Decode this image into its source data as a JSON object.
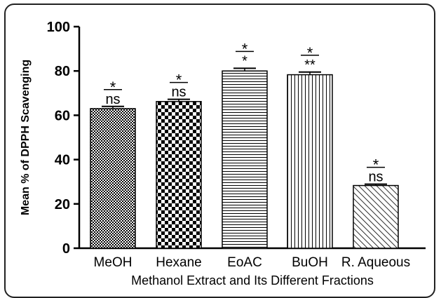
{
  "chart_data": {
    "type": "bar",
    "title": "",
    "xlabel": "Methanol Extract and Its Different Fractions",
    "ylabel": "Mean % of DPPH Scavenging",
    "ylim": [
      0,
      100
    ],
    "yticks": [
      "0",
      "20",
      "40",
      "60",
      "80",
      "100"
    ],
    "categories": [
      "MeOH",
      "Hexane",
      "EoAC",
      "BuOH",
      "R. Aqueous"
    ],
    "values": [
      63,
      66.2,
      80,
      78.3,
      28.3
    ],
    "errors": [
      1.0,
      1.0,
      1.2,
      1.2,
      0.6
    ],
    "patterns": [
      "dots-dense",
      "checker",
      "horizontal-lines",
      "vertical-lines",
      "diagonal-hatch"
    ],
    "annotations": [
      {
        "top": "*",
        "bottom": "ns"
      },
      {
        "top": "*",
        "bottom": "ns"
      },
      {
        "top": "*",
        "bottom": "*"
      },
      {
        "top": "*",
        "bottom": "**"
      },
      {
        "top": "*",
        "bottom": "ns"
      }
    ],
    "grid": false,
    "legend": "none"
  }
}
